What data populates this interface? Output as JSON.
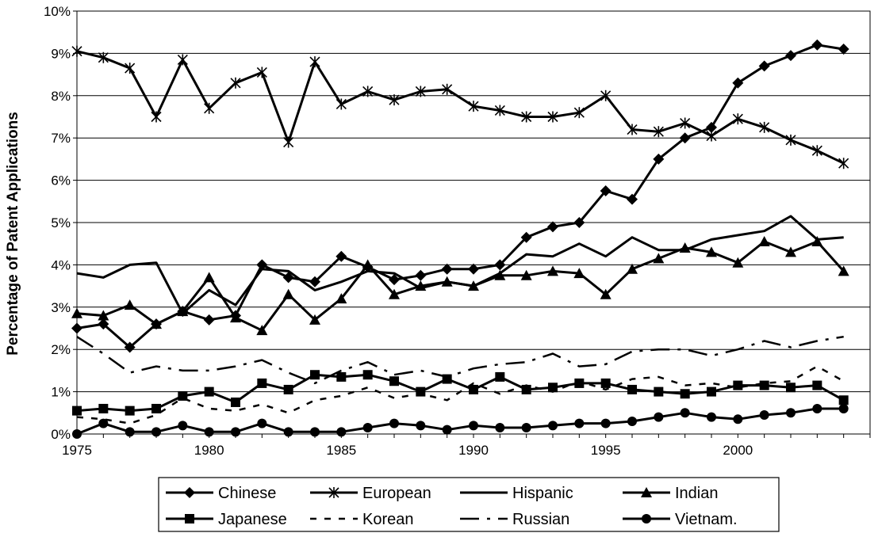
{
  "chart_data": {
    "type": "line",
    "title": "",
    "xlabel": "",
    "ylabel": "Percentage of Patent Applications",
    "x": [
      1975,
      1976,
      1977,
      1978,
      1979,
      1980,
      1981,
      1982,
      1983,
      1984,
      1985,
      1986,
      1987,
      1988,
      1989,
      1990,
      1991,
      1992,
      1993,
      1994,
      1995,
      1996,
      1997,
      1998,
      1999,
      2000,
      2001,
      2002,
      2003,
      2004
    ],
    "xticks": [
      1975,
      1980,
      1985,
      1990,
      1995,
      2000
    ],
    "xtick_labels": [
      "1975",
      "1980",
      "1985",
      "1990",
      "1995",
      "2000"
    ],
    "xlim": [
      1975,
      2005
    ],
    "ylim": [
      0,
      10
    ],
    "yticks": [
      0,
      1,
      2,
      3,
      4,
      5,
      6,
      7,
      8,
      9,
      10
    ],
    "ytick_labels": [
      "0%",
      "1%",
      "2%",
      "3%",
      "4%",
      "5%",
      "6%",
      "7%",
      "8%",
      "9%",
      "10%"
    ],
    "grid": "horizontal",
    "legend_position": "bottom",
    "series": [
      {
        "name": "Chinese",
        "marker": "diamond",
        "dash": "solid",
        "values": [
          2.5,
          2.6,
          2.05,
          2.6,
          2.9,
          2.7,
          2.8,
          4.0,
          3.7,
          3.6,
          4.2,
          3.95,
          3.65,
          3.75,
          3.9,
          3.9,
          4.0,
          4.65,
          4.9,
          5.0,
          5.75,
          5.55,
          6.5,
          7.0,
          7.25,
          8.3,
          8.7,
          8.95,
          9.2,
          9.1
        ]
      },
      {
        "name": "European",
        "marker": "asterisk",
        "dash": "solid",
        "values": [
          9.05,
          8.9,
          8.65,
          7.5,
          8.85,
          7.7,
          8.3,
          8.55,
          6.9,
          8.8,
          7.8,
          8.1,
          7.9,
          8.1,
          8.15,
          7.75,
          7.65,
          7.5,
          7.5,
          7.6,
          8.0,
          7.2,
          7.15,
          7.35,
          7.05,
          7.45,
          7.25,
          6.95,
          6.7,
          6.4
        ]
      },
      {
        "name": "Hispanic",
        "marker": "none",
        "dash": "solid",
        "values": [
          3.8,
          3.7,
          4.0,
          4.05,
          2.85,
          3.4,
          3.05,
          3.9,
          3.85,
          3.4,
          3.6,
          3.85,
          3.8,
          3.45,
          3.6,
          3.5,
          3.8,
          4.25,
          4.2,
          4.5,
          4.2,
          4.65,
          4.35,
          4.35,
          4.6,
          4.7,
          4.8,
          5.15,
          4.6,
          4.65
        ]
      },
      {
        "name": "Indian",
        "marker": "triangle",
        "dash": "solid",
        "values": [
          2.85,
          2.8,
          3.05,
          2.6,
          2.9,
          3.7,
          2.75,
          2.45,
          3.3,
          2.7,
          3.2,
          4.0,
          3.3,
          3.5,
          3.6,
          3.5,
          3.75,
          3.75,
          3.85,
          3.8,
          3.3,
          3.9,
          4.15,
          4.4,
          4.3,
          4.05,
          4.55,
          4.3,
          4.55,
          3.85
        ]
      },
      {
        "name": "Japanese",
        "marker": "square",
        "dash": "solid",
        "values": [
          0.55,
          0.6,
          0.55,
          0.6,
          0.9,
          1.0,
          0.75,
          1.2,
          1.05,
          1.4,
          1.35,
          1.4,
          1.25,
          1.0,
          1.3,
          1.05,
          1.35,
          1.05,
          1.1,
          1.2,
          1.2,
          1.05,
          1.0,
          0.95,
          1.0,
          1.15,
          1.15,
          1.1,
          1.15,
          0.8
        ]
      },
      {
        "name": "Korean",
        "marker": "none",
        "dash": "short",
        "values": [
          0.4,
          0.35,
          0.25,
          0.45,
          0.85,
          0.6,
          0.55,
          0.7,
          0.5,
          0.8,
          0.9,
          1.1,
          0.85,
          0.95,
          0.8,
          1.2,
          0.95,
          1.15,
          1.0,
          1.25,
          1.05,
          1.3,
          1.35,
          1.15,
          1.2,
          1.1,
          1.2,
          1.25,
          1.6,
          1.25
        ]
      },
      {
        "name": "Russian",
        "marker": "none",
        "dash": "long-dot",
        "values": [
          2.3,
          1.9,
          1.45,
          1.6,
          1.5,
          1.5,
          1.6,
          1.75,
          1.45,
          1.2,
          1.5,
          1.7,
          1.4,
          1.5,
          1.35,
          1.55,
          1.65,
          1.7,
          1.9,
          1.6,
          1.65,
          1.95,
          2.0,
          2.0,
          1.85,
          2.0,
          2.2,
          2.05,
          2.2,
          2.3
        ]
      },
      {
        "name": "Vietnam.",
        "marker": "circle",
        "dash": "solid",
        "values": [
          0.0,
          0.25,
          0.05,
          0.05,
          0.2,
          0.05,
          0.05,
          0.25,
          0.05,
          0.05,
          0.05,
          0.15,
          0.25,
          0.2,
          0.1,
          0.2,
          0.15,
          0.15,
          0.2,
          0.25,
          0.25,
          0.3,
          0.4,
          0.5,
          0.4,
          0.35,
          0.45,
          0.5,
          0.6,
          0.6
        ]
      }
    ]
  }
}
